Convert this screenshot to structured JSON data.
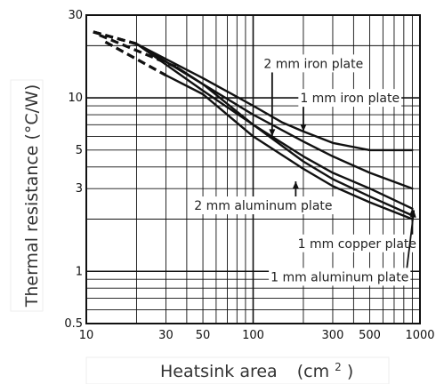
{
  "chart_data": {
    "type": "line",
    "x_scale": "log",
    "y_scale": "log",
    "xlim": [
      10,
      1000
    ],
    "ylim": [
      0.5,
      30
    ],
    "grid": true,
    "xlabel_text": "Heatsink area",
    "xlabel_unit_base": "(cm",
    "xlabel_unit_exp": "2",
    "xlabel_unit_close": ")",
    "ylabel": "Thermal resistance   (°C/W)",
    "x_ticks": [
      10,
      30,
      50,
      100,
      300,
      500,
      1000
    ],
    "y_ticks": [
      0.5,
      1,
      3,
      5,
      10,
      30
    ],
    "series": [
      {
        "name": "2 mm iron plate",
        "solid": [
          [
            20,
            20.5
          ],
          [
            50,
            13
          ],
          [
            100,
            9
          ],
          [
            150,
            7.2
          ],
          [
            200,
            6.4
          ],
          [
            300,
            5.5
          ],
          [
            500,
            5.0
          ],
          [
            900,
            5.0
          ]
        ],
        "dashed": [
          [
            11,
            24
          ],
          [
            20,
            20.5
          ]
        ]
      },
      {
        "name": "1 mm iron plate",
        "solid": [
          [
            20,
            20.5
          ],
          [
            50,
            12
          ],
          [
            100,
            8
          ],
          [
            200,
            5.6
          ],
          [
            300,
            4.6
          ],
          [
            500,
            3.7
          ],
          [
            900,
            3.0
          ]
        ],
        "dashed": [
          [
            11,
            24
          ],
          [
            20,
            20.5
          ]
        ]
      },
      {
        "name": "2 mm aluminum plate",
        "solid": [
          [
            20,
            20.5
          ],
          [
            50,
            11
          ],
          [
            100,
            7
          ],
          [
            200,
            4.6
          ],
          [
            300,
            3.7
          ],
          [
            500,
            3.0
          ],
          [
            900,
            2.3
          ]
        ],
        "dashed": [
          [
            11,
            24
          ],
          [
            20,
            20.5
          ]
        ]
      },
      {
        "name": "1 mm copper plate",
        "solid": [
          [
            35,
            15
          ],
          [
            50,
            12
          ],
          [
            100,
            7
          ],
          [
            200,
            4.3
          ],
          [
            300,
            3.4
          ],
          [
            500,
            2.7
          ],
          [
            900,
            2.1
          ]
        ],
        "dashed": [
          [
            12,
            23
          ],
          [
            35,
            15
          ]
        ]
      },
      {
        "name": "1 mm aluminum plate",
        "solid": [
          [
            30,
            13.5
          ],
          [
            50,
            10.5
          ],
          [
            100,
            6
          ],
          [
            200,
            3.9
          ],
          [
            300,
            3.1
          ],
          [
            500,
            2.5
          ],
          [
            900,
            2.0
          ]
        ],
        "dashed": [
          [
            13,
            21
          ],
          [
            30,
            13.5
          ]
        ]
      }
    ],
    "annotations": [
      {
        "text": "2 mm iron plate",
        "anchor": [
          230,
          15.8
        ],
        "target": [
          130,
          6.0
        ]
      },
      {
        "text": "1 mm iron plate",
        "anchor": [
          380,
          10.0
        ],
        "target": [
          200,
          6.4
        ]
      },
      {
        "text": "2 mm aluminum plate",
        "anchor": [
          115,
          2.4
        ],
        "target": [
          180,
          3.3
        ]
      },
      {
        "text": "1 mm copper plate",
        "anchor": [
          420,
          1.45
        ],
        "target": [
          900,
          2.3
        ]
      },
      {
        "text": "1 mm aluminum plate",
        "anchor": [
          330,
          0.93
        ],
        "target": [
          920,
          2.25
        ]
      }
    ]
  }
}
